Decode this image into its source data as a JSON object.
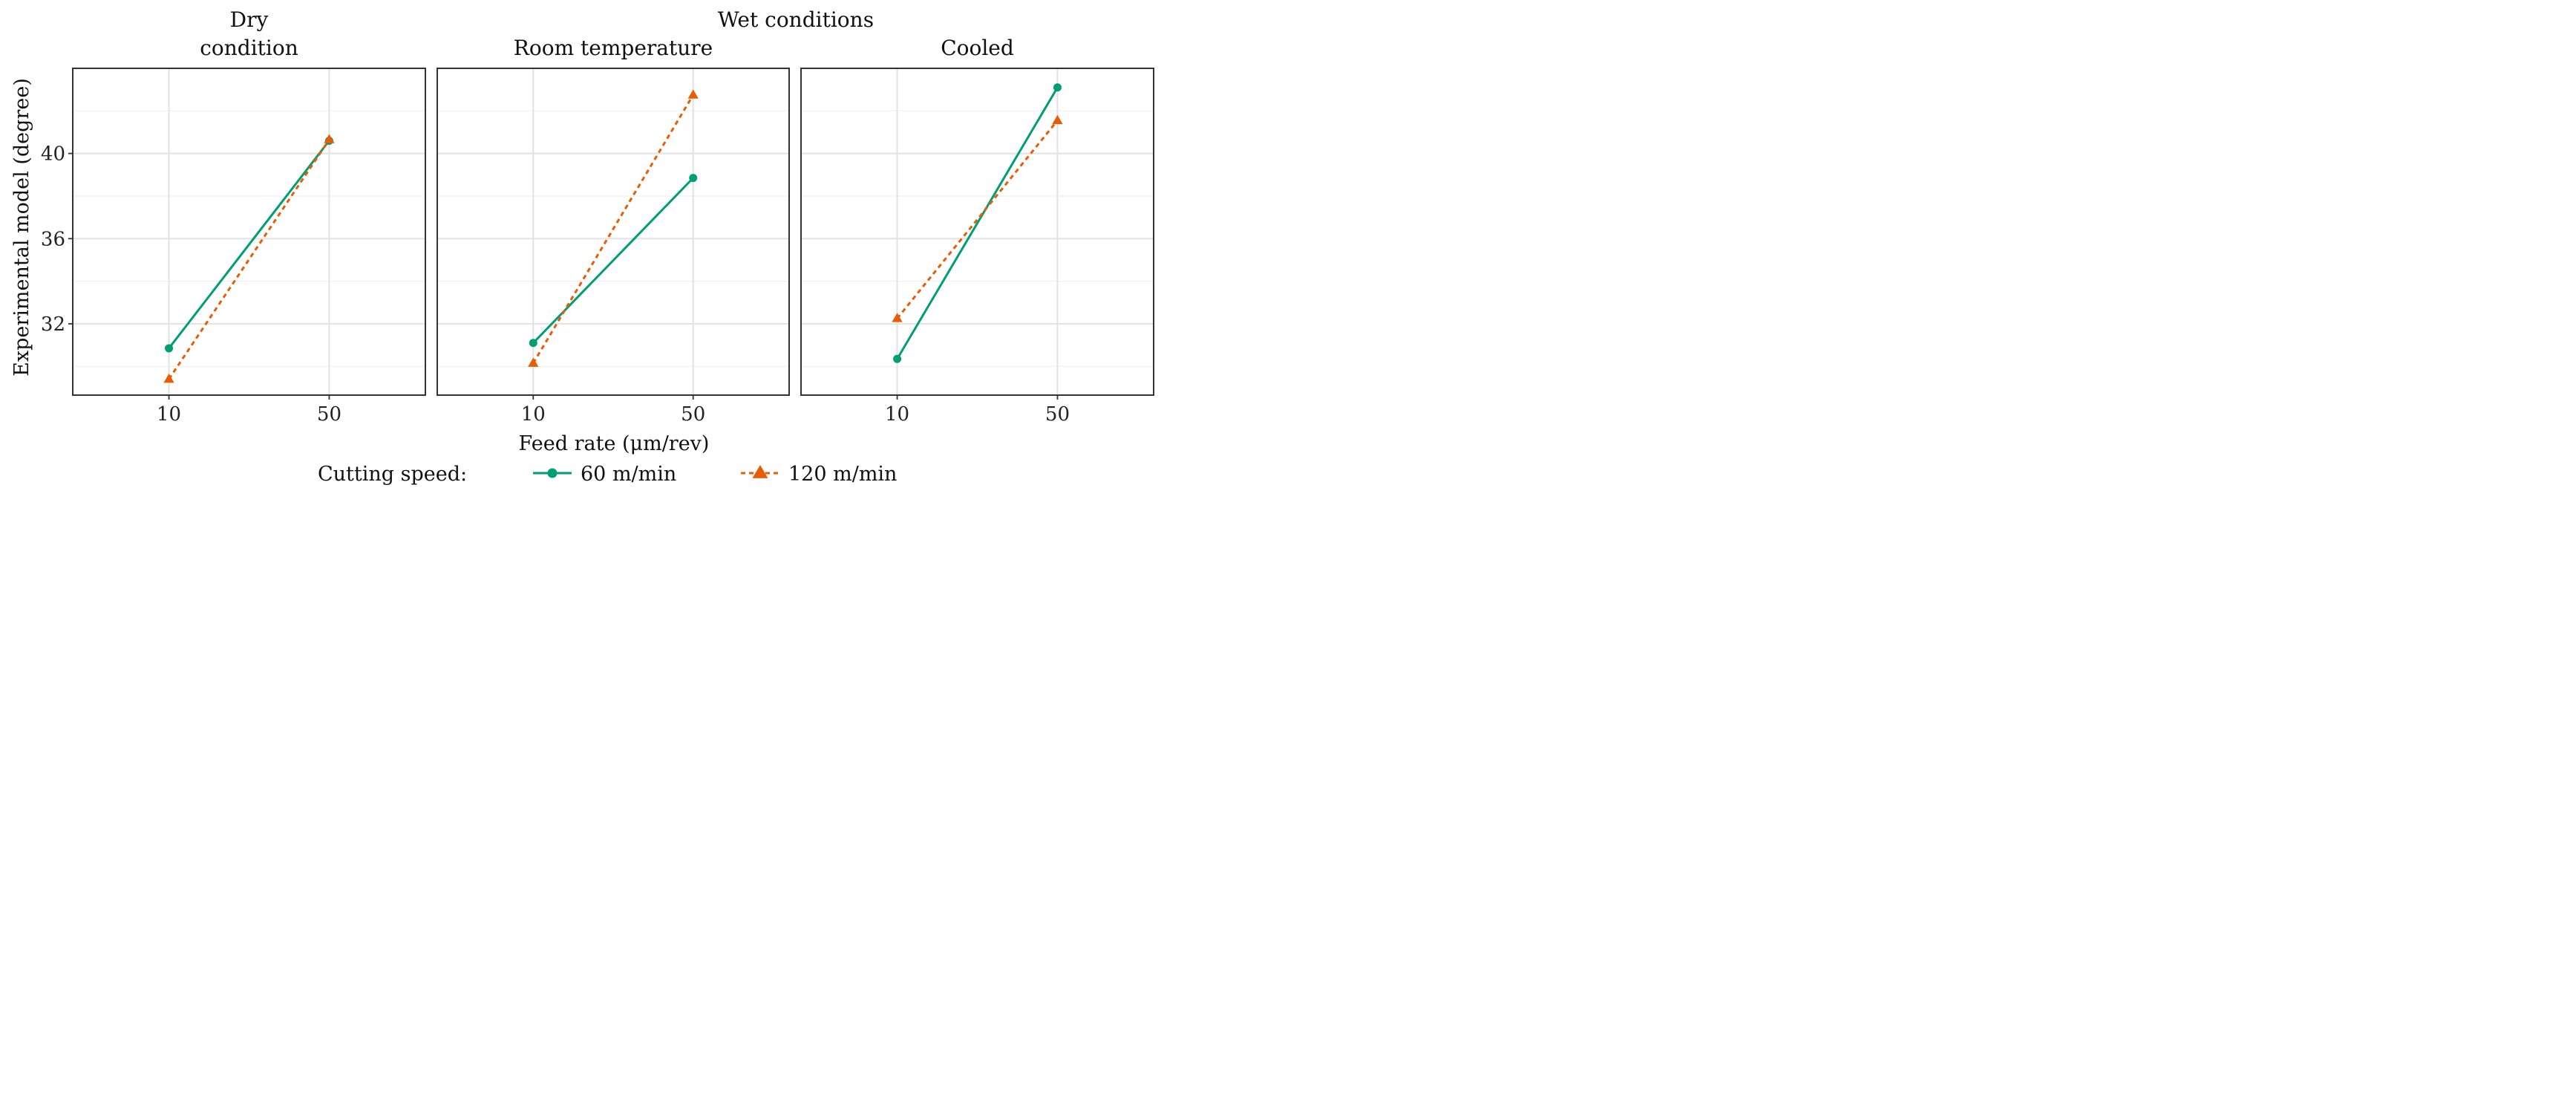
{
  "chart_data": {
    "type": "line",
    "facet_group_label": "Wet conditions",
    "panels": [
      {
        "title_lines": [
          "Dry",
          "condition"
        ],
        "series_values": [
          [
            30.85,
            40.6
          ],
          [
            29.4,
            40.65
          ]
        ]
      },
      {
        "title_lines": [
          "Room temperature"
        ],
        "series_values": [
          [
            31.1,
            38.85
          ],
          [
            30.15,
            42.75
          ]
        ]
      },
      {
        "title_lines": [
          "Cooled"
        ],
        "series_values": [
          [
            30.35,
            43.1
          ],
          [
            32.25,
            41.55
          ]
        ]
      }
    ],
    "x": [
      10,
      50
    ],
    "x_tick_labels": [
      "10",
      "50"
    ],
    "xlim": [
      -14,
      74
    ],
    "xlabel": "Feed rate (μm/rev)",
    "ylabel": "Experimental  model (degree)",
    "y_ticks": [
      32,
      36,
      40
    ],
    "y_tick_labels": [
      "32",
      "36",
      "40"
    ],
    "ylim": [
      28.65,
      44.0
    ],
    "grid": true,
    "legend": {
      "title": "Cutting speed:",
      "position": "bottom"
    },
    "series": [
      {
        "name": "60 m/min",
        "color": "#009E73",
        "marker": "circle",
        "dash": "solid"
      },
      {
        "name": "120 m/min",
        "color": "#E85D04",
        "marker": "triangle",
        "dash": "dashed"
      }
    ]
  }
}
